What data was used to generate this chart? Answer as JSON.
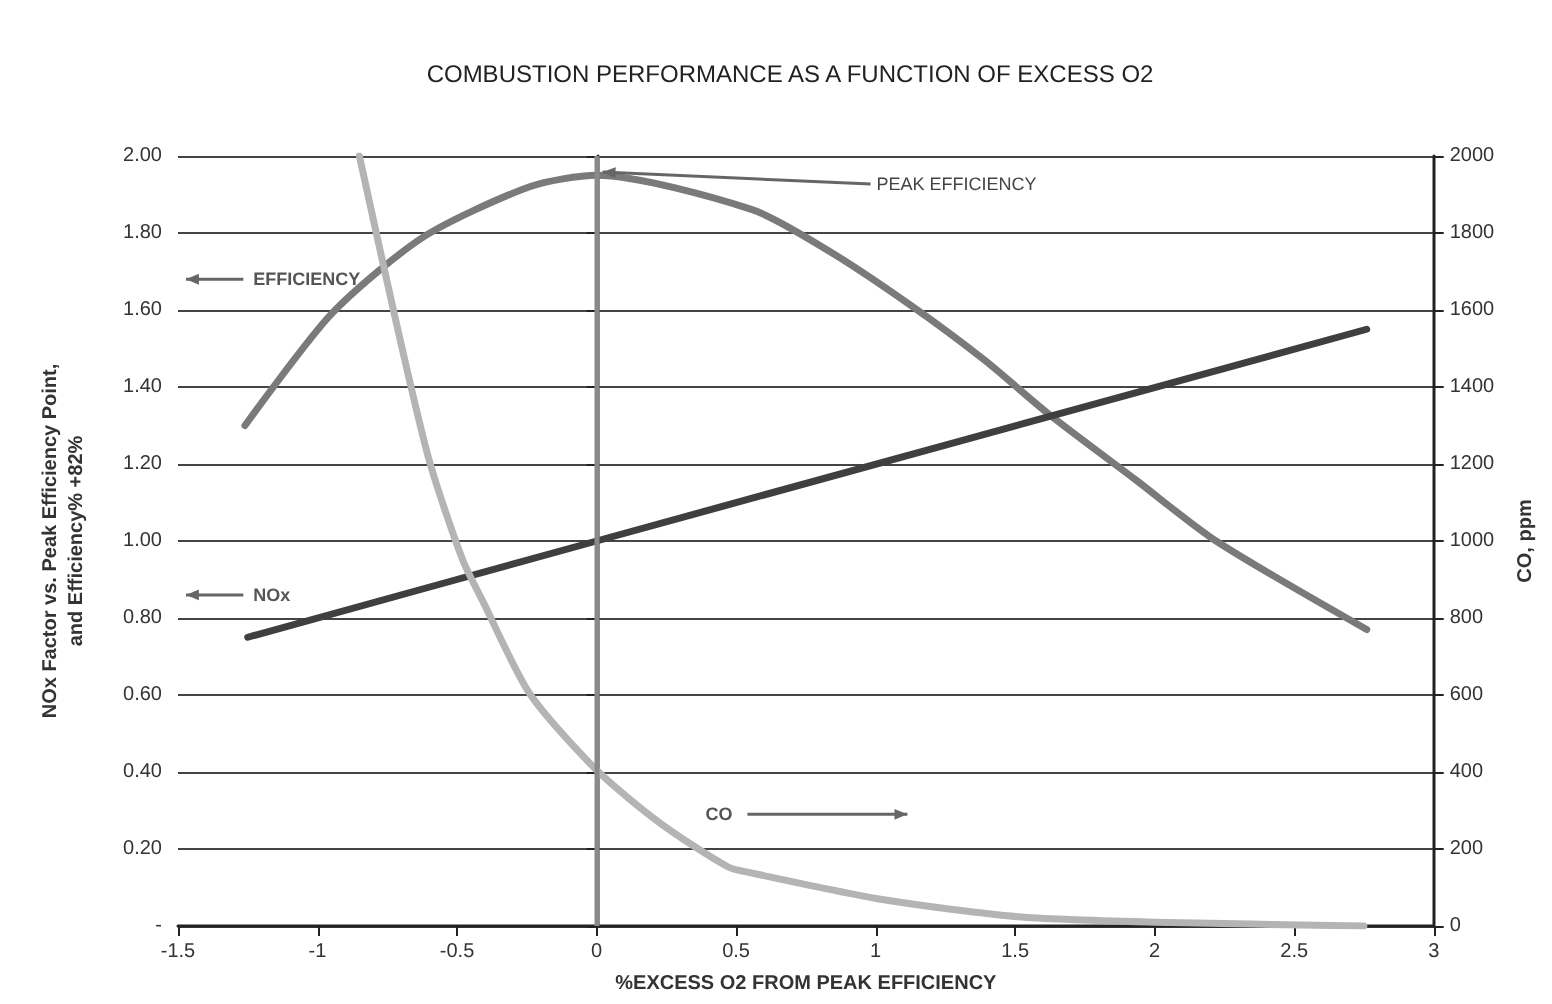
{
  "chart_data": {
    "type": "line",
    "title": "COMBUSTION PERFORMANCE AS A FUNCTION OF EXCESS O2",
    "xlabel": "%EXCESS O2 FROM PEAK EFFICIENCY",
    "ylabel": "NOx Factor vs. Peak Efficiency Point,\nand Efficiency% +82%",
    "y2label": "CO, ppm",
    "xlim": [
      -1.5,
      3
    ],
    "xticks": [
      -1.5,
      -1,
      -0.5,
      0,
      0.5,
      1,
      1.5,
      2,
      2.5,
      3
    ],
    "ylim": [
      0,
      2
    ],
    "yticks": [
      {
        "value": 0,
        "label": "-"
      },
      {
        "value": 0.2,
        "label": "0.20"
      },
      {
        "value": 0.4,
        "label": "0.40"
      },
      {
        "value": 0.6,
        "label": "0.60"
      },
      {
        "value": 0.8,
        "label": "0.80"
      },
      {
        "value": 1,
        "label": "1.00"
      },
      {
        "value": 1.2,
        "label": "1.20"
      },
      {
        "value": 1.4,
        "label": "1.40"
      },
      {
        "value": 1.6,
        "label": "1.60"
      },
      {
        "value": 1.8,
        "label": "1.80"
      },
      {
        "value": 2,
        "label": "2.00"
      }
    ],
    "y2lim": [
      0,
      2000
    ],
    "y2ticks": [
      0,
      200,
      400,
      600,
      800,
      1000,
      1200,
      1400,
      1600,
      1800,
      2000
    ],
    "series": [
      {
        "name": "EFFICIENCY",
        "color": "#7a7a7a",
        "x": [
          -1.26,
          -0.95,
          -0.62,
          -0.24,
          0,
          0.56,
          0.84,
          1.13,
          1.39,
          1.62,
          1.93,
          2.22,
          2.76
        ],
        "values": [
          1.3,
          1.59,
          1.79,
          1.92,
          1.95,
          1.86,
          1.75,
          1.61,
          1.47,
          1.33,
          1.16,
          1.0,
          0.77
        ]
      },
      {
        "name": "NOx",
        "color": "#3f3f3f",
        "x": [
          -1.25,
          0,
          2.76
        ],
        "values": [
          0.75,
          1.0,
          1.55
        ]
      },
      {
        "name": "CO",
        "color": "#b4b4b4",
        "axis": "y2",
        "x": [
          -0.85,
          -0.72,
          -0.6,
          -0.48,
          -0.41,
          -0.24,
          0,
          0.23,
          0.47,
          0.56,
          1.03,
          1.51,
          2.0,
          2.75
        ],
        "values": [
          2000,
          1574,
          1210,
          951,
          847,
          604,
          405,
          266,
          154,
          137,
          68,
          24,
          10,
          0
        ]
      }
    ],
    "ref_lines": [
      {
        "axis": "x",
        "value": 0,
        "label": "PEAK EFFICIENCY",
        "color": "#8a8a8a"
      }
    ],
    "grid": "y",
    "legend": false,
    "marker": "none",
    "line_style": "solid"
  }
}
